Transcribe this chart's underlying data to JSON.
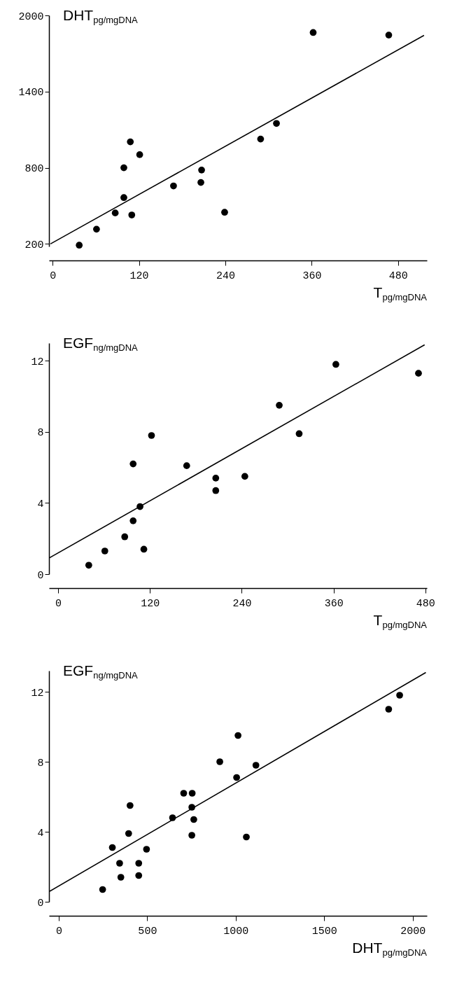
{
  "chart_data": [
    {
      "type": "scatter",
      "ylabel": "DHT$_{pg/mgDNA}$",
      "xlabel": "T$_{pg/mgDNA}$",
      "xlim": [
        -5,
        520
      ],
      "ylim": [
        180,
        2000
      ],
      "xticks": [
        0,
        120,
        240,
        360,
        480
      ],
      "yticks": [
        200,
        800,
        1400,
        2000
      ],
      "grid": false,
      "series": [
        {
          "color": "#000000",
          "marker": "circle",
          "x": [
            37,
            61,
            87,
            99,
            99,
            108,
            110,
            121,
            168,
            206,
            207,
            239,
            289,
            311,
            362,
            467
          ],
          "values": [
            190,
            316,
            444,
            565,
            800,
            1004,
            428,
            903,
            657,
            684,
            782,
            449,
            1026,
            1149,
            1865,
            1845
          ]
        },
        {
          "type": "line",
          "color": "#000000",
          "x": [
            -3,
            516
          ],
          "values": [
            200,
            1843
          ]
        }
      ]
    },
    {
      "type": "scatter",
      "ylabel": "EGF$_{ng/mgDNA}$",
      "xlabel": "T$_{pg/mgDNA}$",
      "xlim": [
        -12,
        482
      ],
      "ylim": [
        0,
        13
      ],
      "xticks": [
        0,
        120,
        240,
        360,
        480
      ],
      "yticks": [
        0,
        4,
        8,
        12
      ],
      "grid": false,
      "series": [
        {
          "color": "#000000",
          "marker": "circle",
          "x": [
            40,
            61,
            87,
            98,
            98,
            107,
            112,
            122,
            168,
            206,
            206,
            244,
            289,
            315,
            363,
            471
          ],
          "values": [
            0.5,
            1.3,
            2.1,
            3.0,
            6.2,
            3.8,
            1.4,
            7.8,
            6.1,
            5.4,
            4.7,
            5.5,
            9.5,
            7.9,
            11.8,
            11.3
          ]
        },
        {
          "type": "line",
          "color": "#000000",
          "x": [
            -12,
            479
          ],
          "values": [
            0.9,
            12.9
          ]
        }
      ]
    },
    {
      "type": "scatter",
      "ylabel": "EGF$_{ng/mgDNA}$",
      "xlabel": "DHT$_{pg/mgDNA}$",
      "xlim": [
        -55,
        2080
      ],
      "ylim": [
        0,
        13.2
      ],
      "xticks": [
        0,
        500,
        1000,
        1500,
        2000
      ],
      "yticks": [
        0,
        4,
        8,
        12
      ],
      "grid": false,
      "series": [
        {
          "color": "#000000",
          "marker": "circle",
          "x": [
            248,
            303,
            344,
            351,
            395,
            403,
            452,
            452,
            496,
            643,
            706,
            754,
            752,
            763,
            752,
            910,
            1005,
            1013,
            1060,
            1114,
            1864,
            1926
          ],
          "values": [
            0.7,
            3.1,
            2.2,
            1.4,
            3.9,
            5.5,
            2.2,
            1.5,
            3.0,
            4.8,
            6.2,
            6.2,
            5.4,
            4.7,
            3.8,
            8.0,
            7.1,
            9.5,
            3.7,
            7.8,
            11.0,
            11.8
          ]
        },
        {
          "type": "line",
          "color": "#000000",
          "x": [
            -51,
            2074
          ],
          "values": [
            0.6,
            13.1
          ]
        }
      ]
    }
  ]
}
